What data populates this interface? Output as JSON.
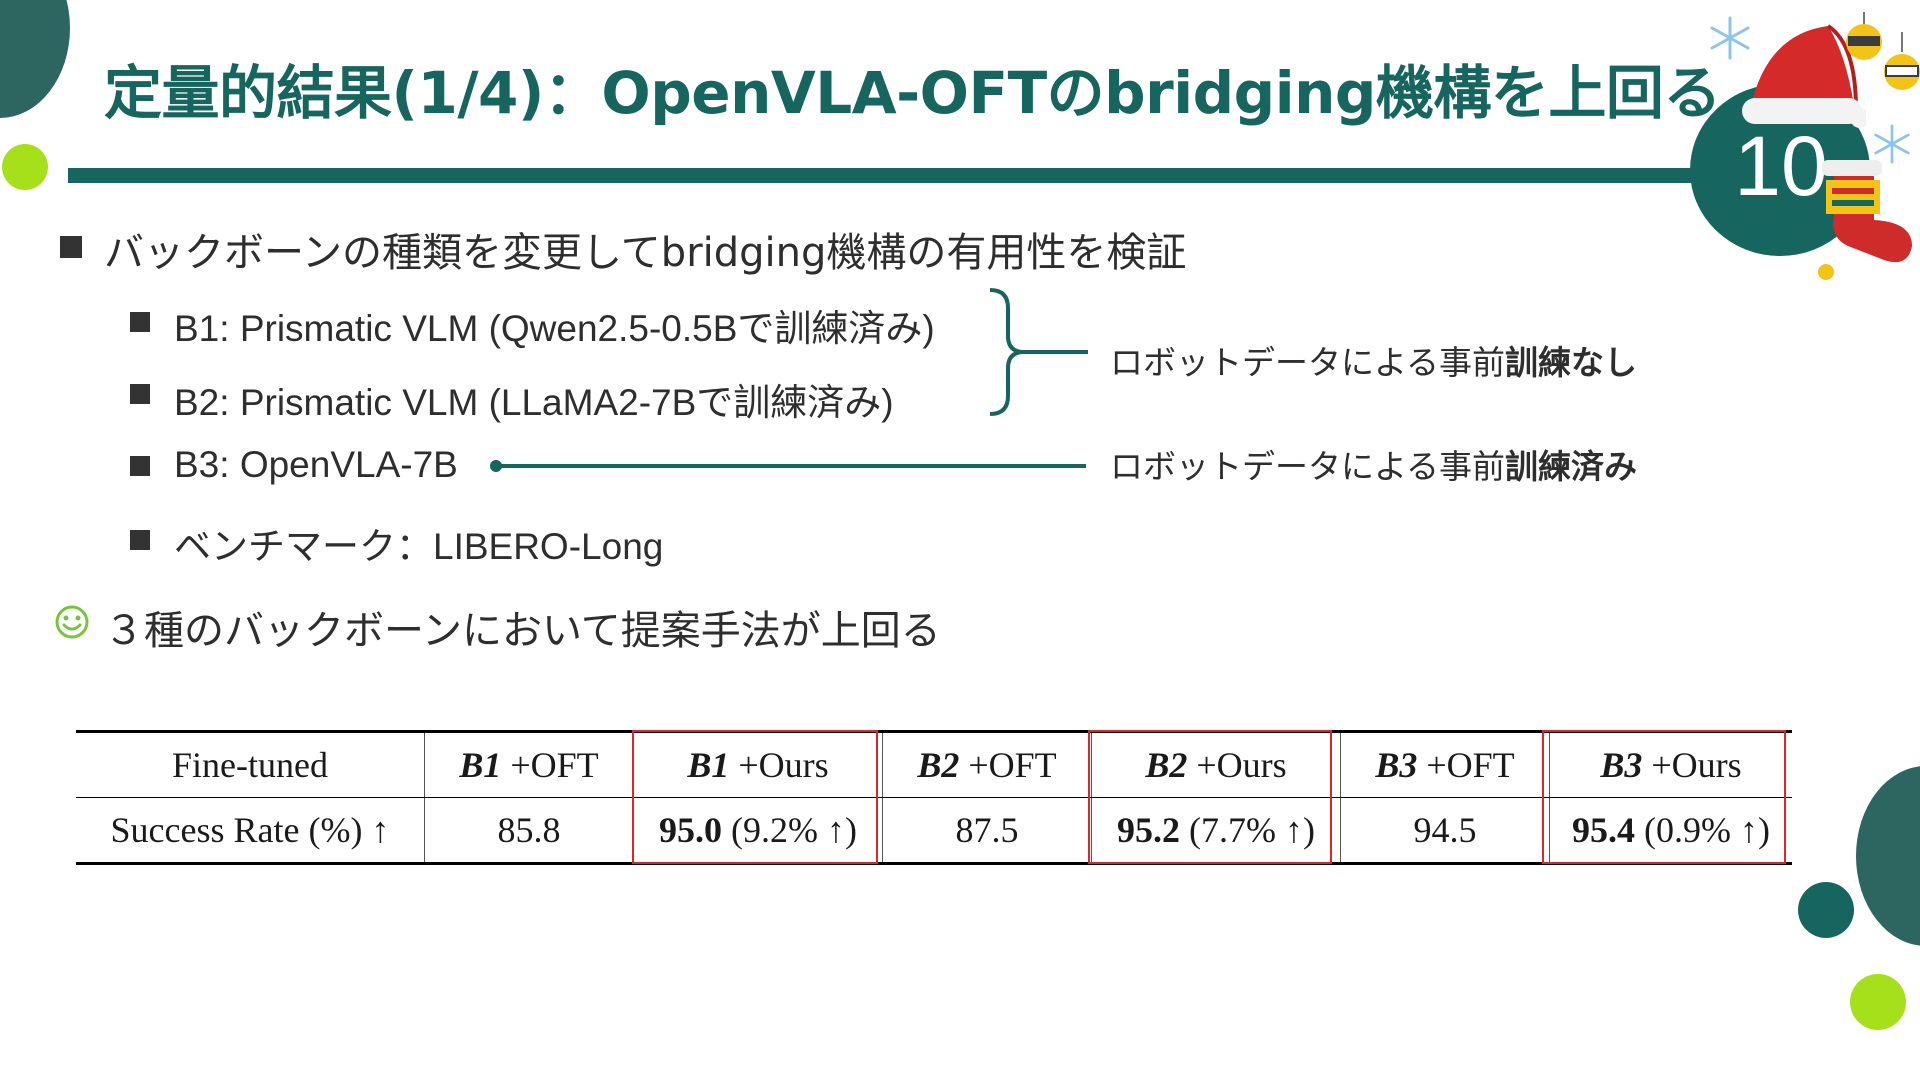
{
  "slide": {
    "title": "定量的結果(1/4)：OpenVLA-OFTのbridging機構を上回る",
    "page_number": "10"
  },
  "bullets": {
    "main": "バックボーンの種類を変更してbridging機構の有用性を検証",
    "sub": [
      "B1: Prismatic VLM (Qwen2.5-0.5Bで訓練済み)",
      "B2: Prismatic VLM (LLaMA2-7Bで訓練済み)",
      "B3: OpenVLA-7B",
      "ベンチマーク：LIBERO-Long"
    ],
    "conclusion": "３種のバックボーンにおいて提案手法が上回る"
  },
  "annotations": {
    "no_pretrain_prefix": "ロボットデータによる事前",
    "no_pretrain_bold": "訓練なし",
    "pretrained_prefix": "ロボットデータによる事前",
    "pretrained_bold": "訓練済み"
  },
  "table": {
    "header": [
      "Fine-tuned",
      "B1",
      "+OFT",
      "B1",
      "+Ours",
      "B2",
      "+OFT",
      "B2",
      "+Ours",
      "B3",
      "+OFT",
      "B3",
      "+Ours"
    ],
    "row_label": "Success Rate (%) ↑",
    "values": {
      "b1_oft": "85.8",
      "b1_ours": "95.0",
      "b1_gain": "(9.2% ↑)",
      "b2_oft": "87.5",
      "b2_ours": "95.2",
      "b2_gain": "(7.7% ↑)",
      "b3_oft": "94.5",
      "b3_ours": "95.4",
      "b3_gain": "(0.9% ↑)"
    }
  },
  "icons": {
    "bullet": "square-bullet",
    "conclusion": "smiley-icon",
    "decor": [
      "snowflake-icon",
      "santa-hat-icon",
      "stocking-icon",
      "ornament-icon"
    ]
  },
  "colors": {
    "accent": "#17655f",
    "lime": "#a6e01a",
    "highlight_box": "#d9272e"
  }
}
